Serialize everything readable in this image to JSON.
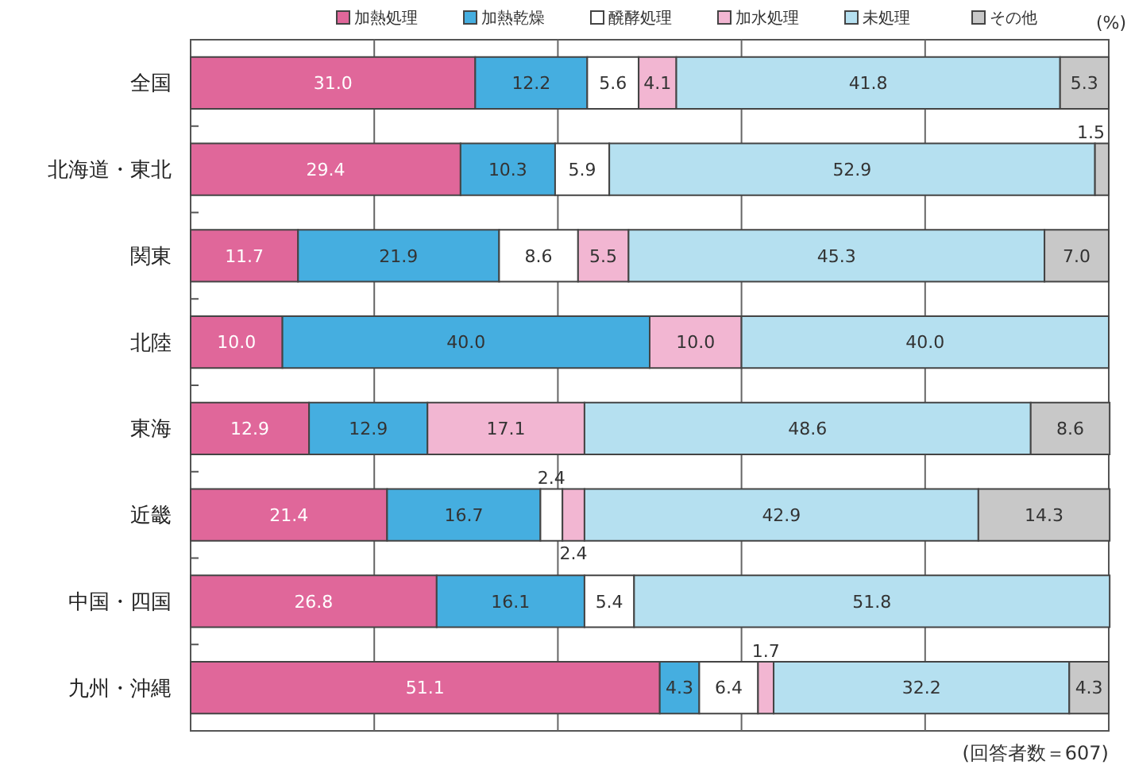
{
  "chart_data": {
    "type": "bar",
    "orientation": "horizontal",
    "stacked": true,
    "xlabel": "(%)",
    "categories": [
      "全国",
      "北海道・東北",
      "関東",
      "北陸",
      "東海",
      "近畿",
      "中国・四国",
      "九州・沖縄"
    ],
    "series": [
      {
        "name": "加熱処理",
        "color": "#e0679a",
        "values": [
          31.0,
          29.4,
          11.7,
          10.0,
          12.9,
          21.4,
          26.8,
          51.1
        ],
        "value_labels": [
          "31.0",
          "29.4",
          "11.7",
          "10.0",
          "12.9",
          "21.4",
          "26.8",
          "51.1"
        ]
      },
      {
        "name": "加熱乾燥",
        "color": "#45aee0",
        "values": [
          12.2,
          10.3,
          21.9,
          40.0,
          12.9,
          16.7,
          16.1,
          4.3
        ],
        "value_labels": [
          "12.2",
          "10.3",
          "21.9",
          "40.0",
          "12.9",
          "16.7",
          "16.1",
          "4.3"
        ]
      },
      {
        "name": "醗酵処理",
        "color": "#ffffff",
        "values": [
          5.6,
          5.9,
          8.6,
          null,
          null,
          2.4,
          5.4,
          6.4
        ],
        "value_labels": [
          "5.6",
          "5.9",
          "8.6",
          null,
          null,
          "2.4",
          "5.4",
          "6.4"
        ]
      },
      {
        "name": "加水処理",
        "color": "#f2b6d2",
        "values": [
          4.1,
          null,
          5.5,
          10.0,
          17.1,
          2.4,
          null,
          1.7
        ],
        "value_labels": [
          "4.1",
          null,
          "5.5",
          "10.0",
          "17.1",
          "2.4",
          null,
          "1.7"
        ]
      },
      {
        "name": "未処理",
        "color": "#b5e0f0",
        "values": [
          41.8,
          52.9,
          45.3,
          40.0,
          48.6,
          42.9,
          51.8,
          32.2
        ],
        "value_labels": [
          "41.8",
          "52.9",
          "45.3",
          "40.0",
          "48.6",
          "42.9",
          "51.8",
          "32.2"
        ]
      },
      {
        "name": "その他",
        "color": "#c8c8c8",
        "values": [
          5.3,
          1.5,
          7.0,
          null,
          8.6,
          14.3,
          null,
          4.3
        ],
        "value_labels": [
          "5.3",
          "1.5",
          "7.0",
          null,
          "8.6",
          "14.3",
          null,
          "4.3"
        ]
      }
    ],
    "xlim": [
      0,
      100
    ],
    "xticks": [
      {
        "value": 20,
        "label": null
      },
      {
        "value": 40,
        "label": null
      },
      {
        "value": 60,
        "label": null
      },
      {
        "value": 80,
        "label": null
      }
    ],
    "tick_labels": "y",
    "grid": "x",
    "legend": "top",
    "annotations": [
      "(回答者数＝607)"
    ]
  }
}
